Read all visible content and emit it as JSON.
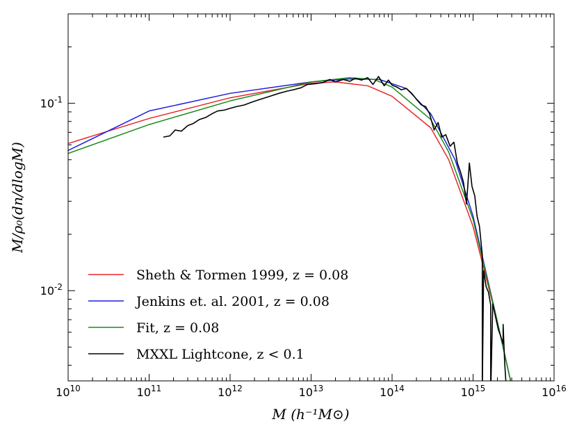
{
  "chart_data": {
    "type": "line",
    "title": "",
    "xlabel": "M (h⁻¹M⊙)",
    "ylabel": "M/ρ₀(dn/dlogM)",
    "xscale": "log",
    "yscale": "log",
    "xlim": [
      10000000000.0,
      1e+16
    ],
    "ylim": [
      0.0033,
      0.3
    ],
    "x_ticks": [
      {
        "value": 10000000000.0,
        "base": "10",
        "exp": "10"
      },
      {
        "value": 100000000000.0,
        "base": "10",
        "exp": "11"
      },
      {
        "value": 1000000000000.0,
        "base": "10",
        "exp": "12"
      },
      {
        "value": 10000000000000.0,
        "base": "10",
        "exp": "13"
      },
      {
        "value": 100000000000000.0,
        "base": "10",
        "exp": "14"
      },
      {
        "value": 1000000000000000.0,
        "base": "10",
        "exp": "15"
      },
      {
        "value": 1e+16,
        "base": "10",
        "exp": "16"
      }
    ],
    "y_ticks": [
      {
        "value": 0.1,
        "base": "10",
        "exp": "-1"
      },
      {
        "value": 0.01,
        "base": "10",
        "exp": "-2"
      }
    ],
    "legend_position": "bottom-left",
    "series": [
      {
        "name": "Sheth & Tormen 1999, z = 0.08",
        "color": "#e8262b",
        "x": [
          10000000000.0,
          100000000000.0,
          1000000000000.0,
          10000000000000.0,
          20000000000000.0,
          50000000000000.0,
          100000000000000.0,
          300000000000000.0,
          500000000000000.0,
          1000000000000000.0,
          2000000000000000.0,
          3000000000000000.0
        ],
        "y": [
          0.061,
          0.083,
          0.107,
          0.128,
          0.13,
          0.124,
          0.109,
          0.074,
          0.05,
          0.022,
          0.0068,
          0.0031
        ]
      },
      {
        "name": "Jenkins et. al. 2001, z = 0.08",
        "color": "#1f1fe0",
        "x": [
          10000000000.0,
          100000000000.0,
          1000000000000.0,
          10000000000000.0,
          30000000000000.0,
          70000000000000.0,
          150000000000000.0,
          300000000000000.0,
          600000000000000.0,
          1000000000000000.0,
          2000000000000000.0,
          3000000000000000.0
        ],
        "y": [
          0.056,
          0.091,
          0.113,
          0.13,
          0.135,
          0.134,
          0.12,
          0.088,
          0.05,
          0.025,
          0.0068,
          0.0031
        ]
      },
      {
        "name": "Fit, z = 0.08",
        "color": "#1a8a1a",
        "x": [
          10000000000.0,
          100000000000.0,
          1000000000000.0,
          10000000000000.0,
          30000000000000.0,
          60000000000000.0,
          100000000000000.0,
          300000000000000.0,
          500000000000000.0,
          1000000000000000.0,
          2000000000000000.0,
          3000000000000000.0
        ],
        "y": [
          0.054,
          0.077,
          0.103,
          0.13,
          0.137,
          0.134,
          0.122,
          0.082,
          0.055,
          0.024,
          0.0068,
          0.0031
        ]
      },
      {
        "name": "MXXL Lightcone, z < 0.1",
        "color": "#000000",
        "x": [
          150000000000.0,
          180000000000.0,
          210000000000.0,
          250000000000.0,
          300000000000.0,
          350000000000.0,
          420000000000.0,
          500000000000.0,
          600000000000.0,
          700000000000.0,
          850000000000.0,
          1000000000000.0,
          1200000000000.0,
          1500000000000.0,
          1800000000000.0,
          2200000000000.0,
          2700000000000.0,
          3300000000000.0,
          4000000000000.0,
          5000000000000.0,
          6000000000000.0,
          7500000000000.0,
          9000000000000.0,
          11000000000000.0,
          14000000000000.0,
          17000000000000.0,
          20000000000000.0,
          25000000000000.0,
          30000000000000.0,
          35000000000000.0,
          42000000000000.0,
          50000000000000.0,
          58000000000000.0,
          68000000000000.0,
          80000000000000.0,
          90000000000000.0,
          100000000000000.0,
          115000000000000.0,
          130000000000000.0,
          150000000000000.0,
          175000000000000.0,
          200000000000000.0,
          230000000000000.0,
          260000000000000.0,
          290000000000000.0,
          330000000000000.0,
          370000000000000.0,
          410000000000000.0,
          460000000000000.0,
          520000000000000.0,
          580000000000000.0,
          640000000000000.0,
          700000000000000.0,
          760000000000000.0,
          830000000000000.0,
          900000000000000.0,
          970000000000000.0,
          1050000000000000.0,
          1120000000000000.0,
          1200000000000000.0,
          1300000000000000.0,
          1300000000000000.0,
          1350000000000000.0,
          1450000000000000.0,
          1550000000000000.0,
          1650000000000000.0,
          1650000000000000.0,
          1750000000000000.0,
          1900000000000000.0,
          2050000000000000.0,
          2200000000000000.0,
          2350000000000000.0,
          2350000000000000.0,
          2450000000000000.0,
          2600000000000000.0
        ],
        "y": [
          0.066,
          0.067,
          0.072,
          0.071,
          0.076,
          0.078,
          0.082,
          0.084,
          0.088,
          0.091,
          0.092,
          0.094,
          0.096,
          0.098,
          0.101,
          0.104,
          0.107,
          0.11,
          0.113,
          0.116,
          0.118,
          0.121,
          0.126,
          0.127,
          0.129,
          0.134,
          0.13,
          0.134,
          0.131,
          0.136,
          0.133,
          0.137,
          0.126,
          0.139,
          0.124,
          0.133,
          0.125,
          0.122,
          0.118,
          0.12,
          0.113,
          0.105,
          0.098,
          0.096,
          0.088,
          0.072,
          0.079,
          0.066,
          0.068,
          0.059,
          0.062,
          0.048,
          0.043,
          0.038,
          0.029,
          0.048,
          0.036,
          0.032,
          0.025,
          0.022,
          0.0155,
          0.0028,
          0.0128,
          0.0105,
          0.0098,
          0.0084,
          0.0028,
          0.0085,
          0.0072,
          0.0062,
          0.0057,
          0.0052,
          0.0066,
          0.0042,
          0.0028
        ]
      }
    ]
  }
}
